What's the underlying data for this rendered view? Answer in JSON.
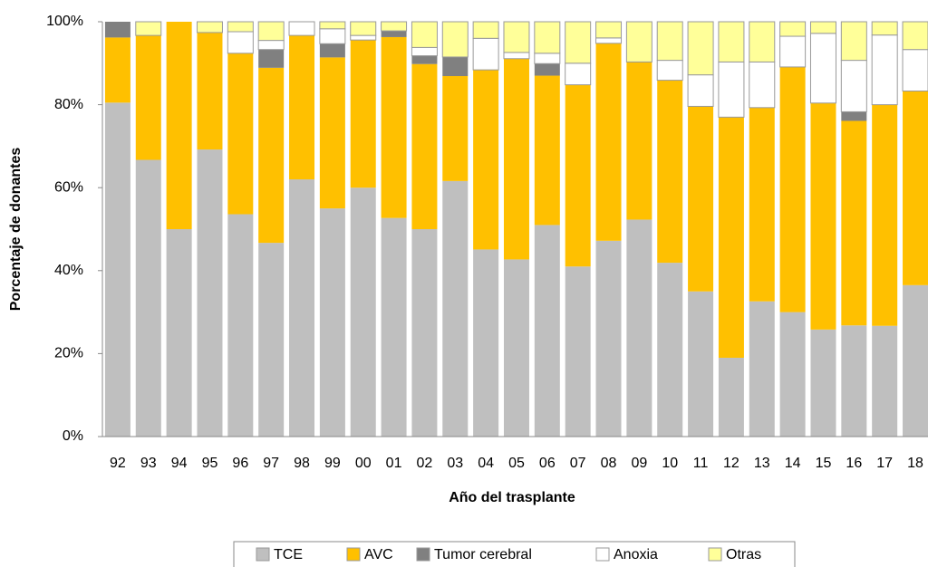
{
  "chart_data": {
    "type": "stacked_bar_percent",
    "x_label": "Año del trasplante",
    "y_label": "Porcentaje de donantes",
    "categories": [
      "92",
      "93",
      "94",
      "95",
      "96",
      "97",
      "98",
      "99",
      "00",
      "01",
      "02",
      "03",
      "04",
      "05",
      "06",
      "07",
      "08",
      "09",
      "10",
      "11",
      "12",
      "13",
      "14",
      "15",
      "16",
      "17",
      "18"
    ],
    "series": [
      {
        "name": "TCE",
        "color": "#bfbfbf",
        "values": [
          80.5,
          66.7,
          50,
          69.2,
          53.6,
          46.7,
          62,
          55,
          60,
          52.7,
          50,
          61.6,
          45.1,
          42.7,
          51,
          41,
          47.2,
          52.3,
          41.9,
          35,
          19,
          32.6,
          30,
          25.8,
          26.8,
          26.7,
          36.5
        ]
      },
      {
        "name": "AVC",
        "color": "#ffc000",
        "values": [
          15.7,
          30,
          50,
          28.2,
          38.8,
          42.2,
          34.7,
          36.4,
          35.6,
          43.6,
          39.8,
          25.3,
          43.3,
          48.4,
          36,
          43.8,
          47.6,
          38,
          44,
          44.6,
          58,
          46.7,
          59.1,
          54.6,
          49.3,
          53.3,
          46.8
        ]
      },
      {
        "name": "Tumor cerebral",
        "color": "#808080",
        "values": [
          3.8,
          0,
          0,
          0,
          0,
          4.4,
          0,
          3.3,
          0,
          1.5,
          2,
          4.6,
          0,
          0,
          2.9,
          0,
          0,
          0,
          0,
          0,
          0,
          0,
          0,
          0,
          2.2,
          0,
          0
        ]
      },
      {
        "name": "Anoxia",
        "color": "#ffffff",
        "values": [
          0,
          0,
          0,
          0,
          5.2,
          2.2,
          3.3,
          3.6,
          1.1,
          0,
          2,
          0,
          7.6,
          1.5,
          2.5,
          5.2,
          1.3,
          0,
          4.8,
          7.6,
          13.3,
          11,
          7.4,
          16.8,
          12.4,
          16.8,
          10
        ]
      },
      {
        "name": "Otras",
        "color": "#ffff99",
        "values": [
          0,
          3.3,
          0,
          2.6,
          2.4,
          4.5,
          0,
          1.7,
          3.3,
          2.2,
          6.2,
          8.5,
          4,
          7.4,
          7.6,
          10,
          3.9,
          9.7,
          9.3,
          12.8,
          9.7,
          9.7,
          3.5,
          2.8,
          9.3,
          3.2,
          6.7
        ]
      }
    ],
    "ylim": [
      0,
      100
    ],
    "yticks": [
      {
        "value": 0,
        "label": "0%"
      },
      {
        "value": 20,
        "label": "20%"
      },
      {
        "value": 40,
        "label": "40%"
      },
      {
        "value": 60,
        "label": "60%"
      },
      {
        "value": 80,
        "label": "80%"
      },
      {
        "value": 100,
        "label": "100%"
      }
    ],
    "legend": "bottom"
  }
}
